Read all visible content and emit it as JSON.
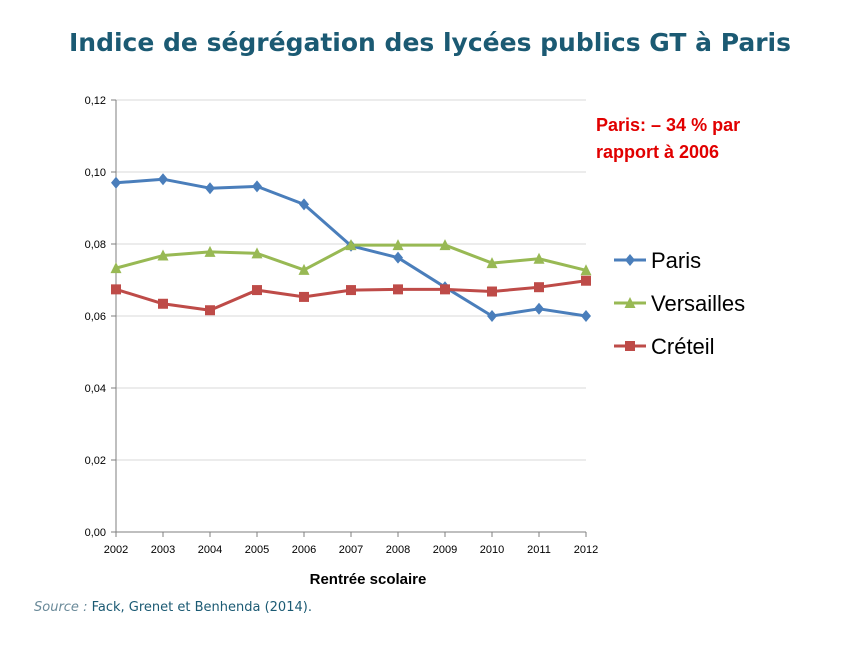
{
  "title": "Indice de ségrégation des lycées publics GT à Paris",
  "source": {
    "prefix": "Source :",
    "text": "Fack, Grenet et Benhenda (2014)."
  },
  "chart_data": {
    "type": "line",
    "xlabel": "Rentrée scolaire",
    "ylabel": "",
    "x": [
      "2002",
      "2003",
      "2004",
      "2005",
      "2006",
      "2007",
      "2008",
      "2009",
      "2010",
      "2011",
      "2012"
    ],
    "ylim": [
      0,
      0.12
    ],
    "yticks": [
      "0,00",
      "0,02",
      "0,04",
      "0,06",
      "0,08",
      "0,10",
      "0,12"
    ],
    "grid": "horizontal",
    "legend": "right",
    "annotation": [
      "Paris: – 34 % par",
      "rapport à 2006"
    ],
    "series": [
      {
        "name": "Paris",
        "color": "#4a7ebb",
        "marker": "diamond",
        "values": [
          0.097,
          0.098,
          0.0955,
          0.096,
          0.091,
          0.0795,
          0.0762,
          0.068,
          0.06,
          0.062,
          0.06
        ]
      },
      {
        "name": "Versailles",
        "color": "#98b954",
        "marker": "triangle",
        "values": [
          0.0733,
          0.0768,
          0.0778,
          0.0774,
          0.0728,
          0.0797,
          0.0797,
          0.0797,
          0.0747,
          0.0759,
          0.0727
        ]
      },
      {
        "name": "Créteil",
        "color": "#be4b48",
        "marker": "square",
        "values": [
          0.0674,
          0.0634,
          0.0616,
          0.0672,
          0.0653,
          0.0672,
          0.0674,
          0.0674,
          0.0668,
          0.068,
          0.0698
        ]
      }
    ]
  }
}
